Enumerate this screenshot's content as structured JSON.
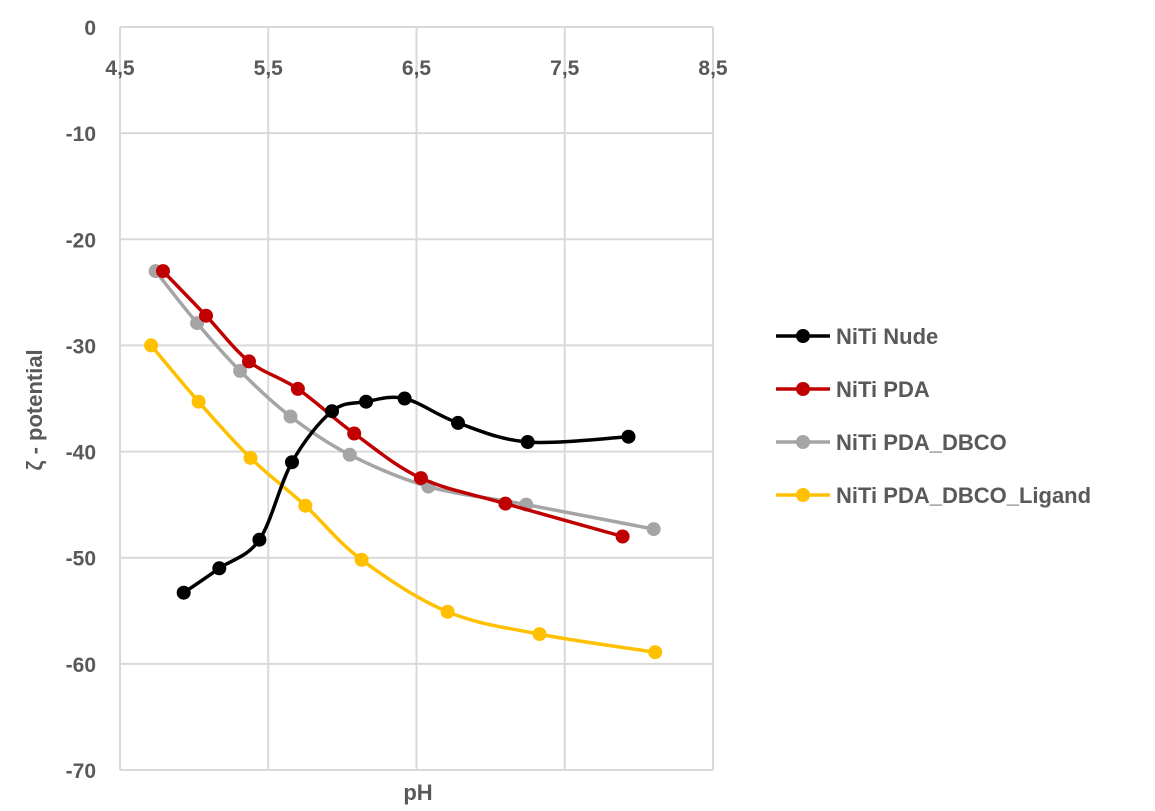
{
  "chart_data": {
    "type": "line",
    "title": "",
    "xlabel": "pH",
    "ylabel": "ζ - potential",
    "xlim": [
      4.5,
      8.5
    ],
    "ylim": [
      -70,
      0
    ],
    "x_ticks": [
      4.5,
      5.5,
      6.5,
      7.5,
      8.5
    ],
    "x_tick_labels": [
      "4,5",
      "5,5",
      "6,5",
      "7,5",
      "8,5"
    ],
    "y_ticks": [
      0,
      -10,
      -20,
      -30,
      -40,
      -50,
      -60,
      -70
    ],
    "y_tick_labels": [
      "0",
      "-10",
      "-20",
      "-30",
      "-40",
      "-50",
      "-60",
      "-70"
    ],
    "x_axis_position": "top",
    "grid": true,
    "legend_position": "right",
    "series": [
      {
        "name": "NiTi Nude",
        "color": "#000000",
        "x": [
          4.93,
          5.17,
          5.44,
          5.66,
          5.93,
          6.16,
          6.42,
          6.78,
          7.25,
          7.93
        ],
        "y": [
          -53.3,
          -51.0,
          -48.3,
          -41.0,
          -36.2,
          -35.3,
          -35.0,
          -37.3,
          -39.1,
          -38.6
        ]
      },
      {
        "name": "NiTi PDA",
        "color": "#c00000",
        "x": [
          4.79,
          5.08,
          5.37,
          5.7,
          6.08,
          6.53,
          7.1,
          7.89
        ],
        "y": [
          -23.0,
          -27.2,
          -31.5,
          -34.1,
          -38.3,
          -42.5,
          -44.9,
          -48.0
        ]
      },
      {
        "name": "NiTi PDA_DBCO",
        "color": "#a5a5a5",
        "x": [
          4.74,
          5.02,
          5.31,
          5.65,
          6.05,
          6.58,
          7.24,
          8.1
        ],
        "y": [
          -23.0,
          -27.9,
          -32.4,
          -36.7,
          -40.3,
          -43.3,
          -45.0,
          -47.3
        ]
      },
      {
        "name": "NiTi PDA_DBCO_Ligand",
        "color": "#ffc000",
        "x": [
          4.71,
          5.03,
          5.38,
          5.75,
          6.13,
          6.71,
          7.33,
          8.11
        ],
        "y": [
          -30.0,
          -35.3,
          -40.6,
          -45.1,
          -50.2,
          -55.1,
          -57.2,
          -58.9
        ]
      }
    ]
  }
}
